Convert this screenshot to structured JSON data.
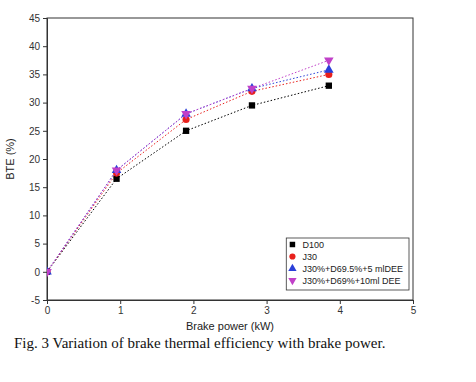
{
  "chart_data": {
    "type": "line",
    "title": "Fig. 3 Variation of brake thermal efficiency with brake power.",
    "x_label": "Brake power (kW)",
    "y_label": "BTE (%)",
    "x": [
      0,
      0.95,
      1.9,
      2.8,
      3.85
    ],
    "series": [
      {
        "name": "D100",
        "color": "#000000",
        "marker": "square",
        "line_style": "dotted",
        "values": [
          0,
          16.5,
          25,
          29.5,
          33
        ]
      },
      {
        "name": "J30",
        "color": "#e8201c",
        "marker": "circle",
        "line_style": "dotted",
        "values": [
          0,
          17.5,
          27,
          32,
          35
        ]
      },
      {
        "name": "J30%+D69.5%+5 mlDEE",
        "color": "#2a3fd8",
        "marker": "triangle",
        "line_style": "dotted",
        "values": [
          0,
          18,
          28,
          32.5,
          35.8
        ]
      },
      {
        "name": "J30%+D69%+10ml DEE",
        "color": "#c040c8",
        "marker": "triangle-down",
        "line_style": "dotted",
        "values": [
          0,
          18,
          28,
          32.5,
          37.5
        ]
      }
    ],
    "xlim": [
      0,
      5
    ],
    "xticks": [
      0,
      1,
      2,
      3,
      4,
      5
    ],
    "ylim": [
      -5,
      45
    ],
    "yticks": [
      -5,
      0,
      5,
      10,
      15,
      20,
      25,
      30,
      35,
      40,
      45
    ],
    "legend": "lower right",
    "grid": false
  }
}
